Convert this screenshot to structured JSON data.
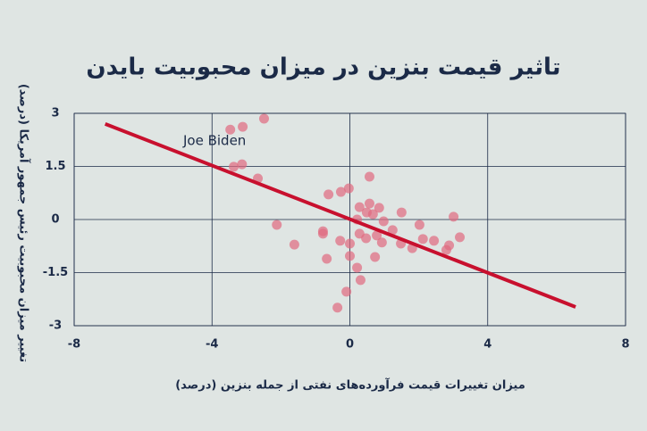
{
  "chart_data": {
    "type": "scatter",
    "title": "تاثیر قیمت بنزین در میزان محبوبیت بایدن",
    "x_label": "میزان تغییرات قیمت فرآورده‌های نفتی از جمله بنزین (درصد)",
    "y_label": "تغییر میزان محبوبیت رئیس جمهور آمریکا (درصد)",
    "annotation": "Joe Biden",
    "xlim": [
      -8,
      8
    ],
    "xticks": [
      -8,
      -4,
      0,
      4,
      8
    ],
    "ylim": [
      -3,
      3
    ],
    "yticks": [
      -3,
      -1.5,
      0,
      1.5,
      3
    ],
    "grid": true,
    "series": [
      {
        "color": "#e0697f",
        "x": [
          -3.47,
          -3.11,
          -2.49,
          -3.37,
          -3.13,
          -2.67,
          -2.12,
          -1.61,
          -0.78,
          -0.78,
          -0.62,
          -0.26,
          -0.67,
          -0.28,
          -0.03,
          -0.36,
          -0.1,
          0.21,
          0.28,
          0,
          0,
          0.28,
          0.21,
          0.31,
          0.57,
          0.49,
          0.67,
          0.47,
          0.57,
          0.78,
          0.73,
          0.85,
          0.98,
          1.24,
          0.93,
          1.5,
          1.48,
          1.81,
          2.02,
          2.12,
          2.44,
          2.8,
          3.01,
          3.19,
          2.88
        ],
        "values": [
          2.54,
          2.62,
          2.85,
          1.49,
          1.56,
          1.16,
          -0.15,
          -0.71,
          -0.33,
          -0.4,
          0.71,
          0.78,
          -1.11,
          -0.6,
          0.88,
          -2.49,
          -2.04,
          0,
          0.35,
          -1.03,
          -0.68,
          -0.4,
          -1.36,
          -1.71,
          1.21,
          0.2,
          0.15,
          -0.53,
          0.45,
          -0.45,
          -1.06,
          0.33,
          -0.05,
          -0.3,
          -0.65,
          0.2,
          -0.68,
          -0.81,
          -0.15,
          -0.55,
          -0.6,
          -0.86,
          0.08,
          -0.5,
          -0.73
        ]
      }
    ],
    "trend_line": {
      "color": "#c8102e",
      "x": [
        -7.1,
        6.55
      ],
      "values": [
        2.7,
        -2.47
      ]
    }
  }
}
